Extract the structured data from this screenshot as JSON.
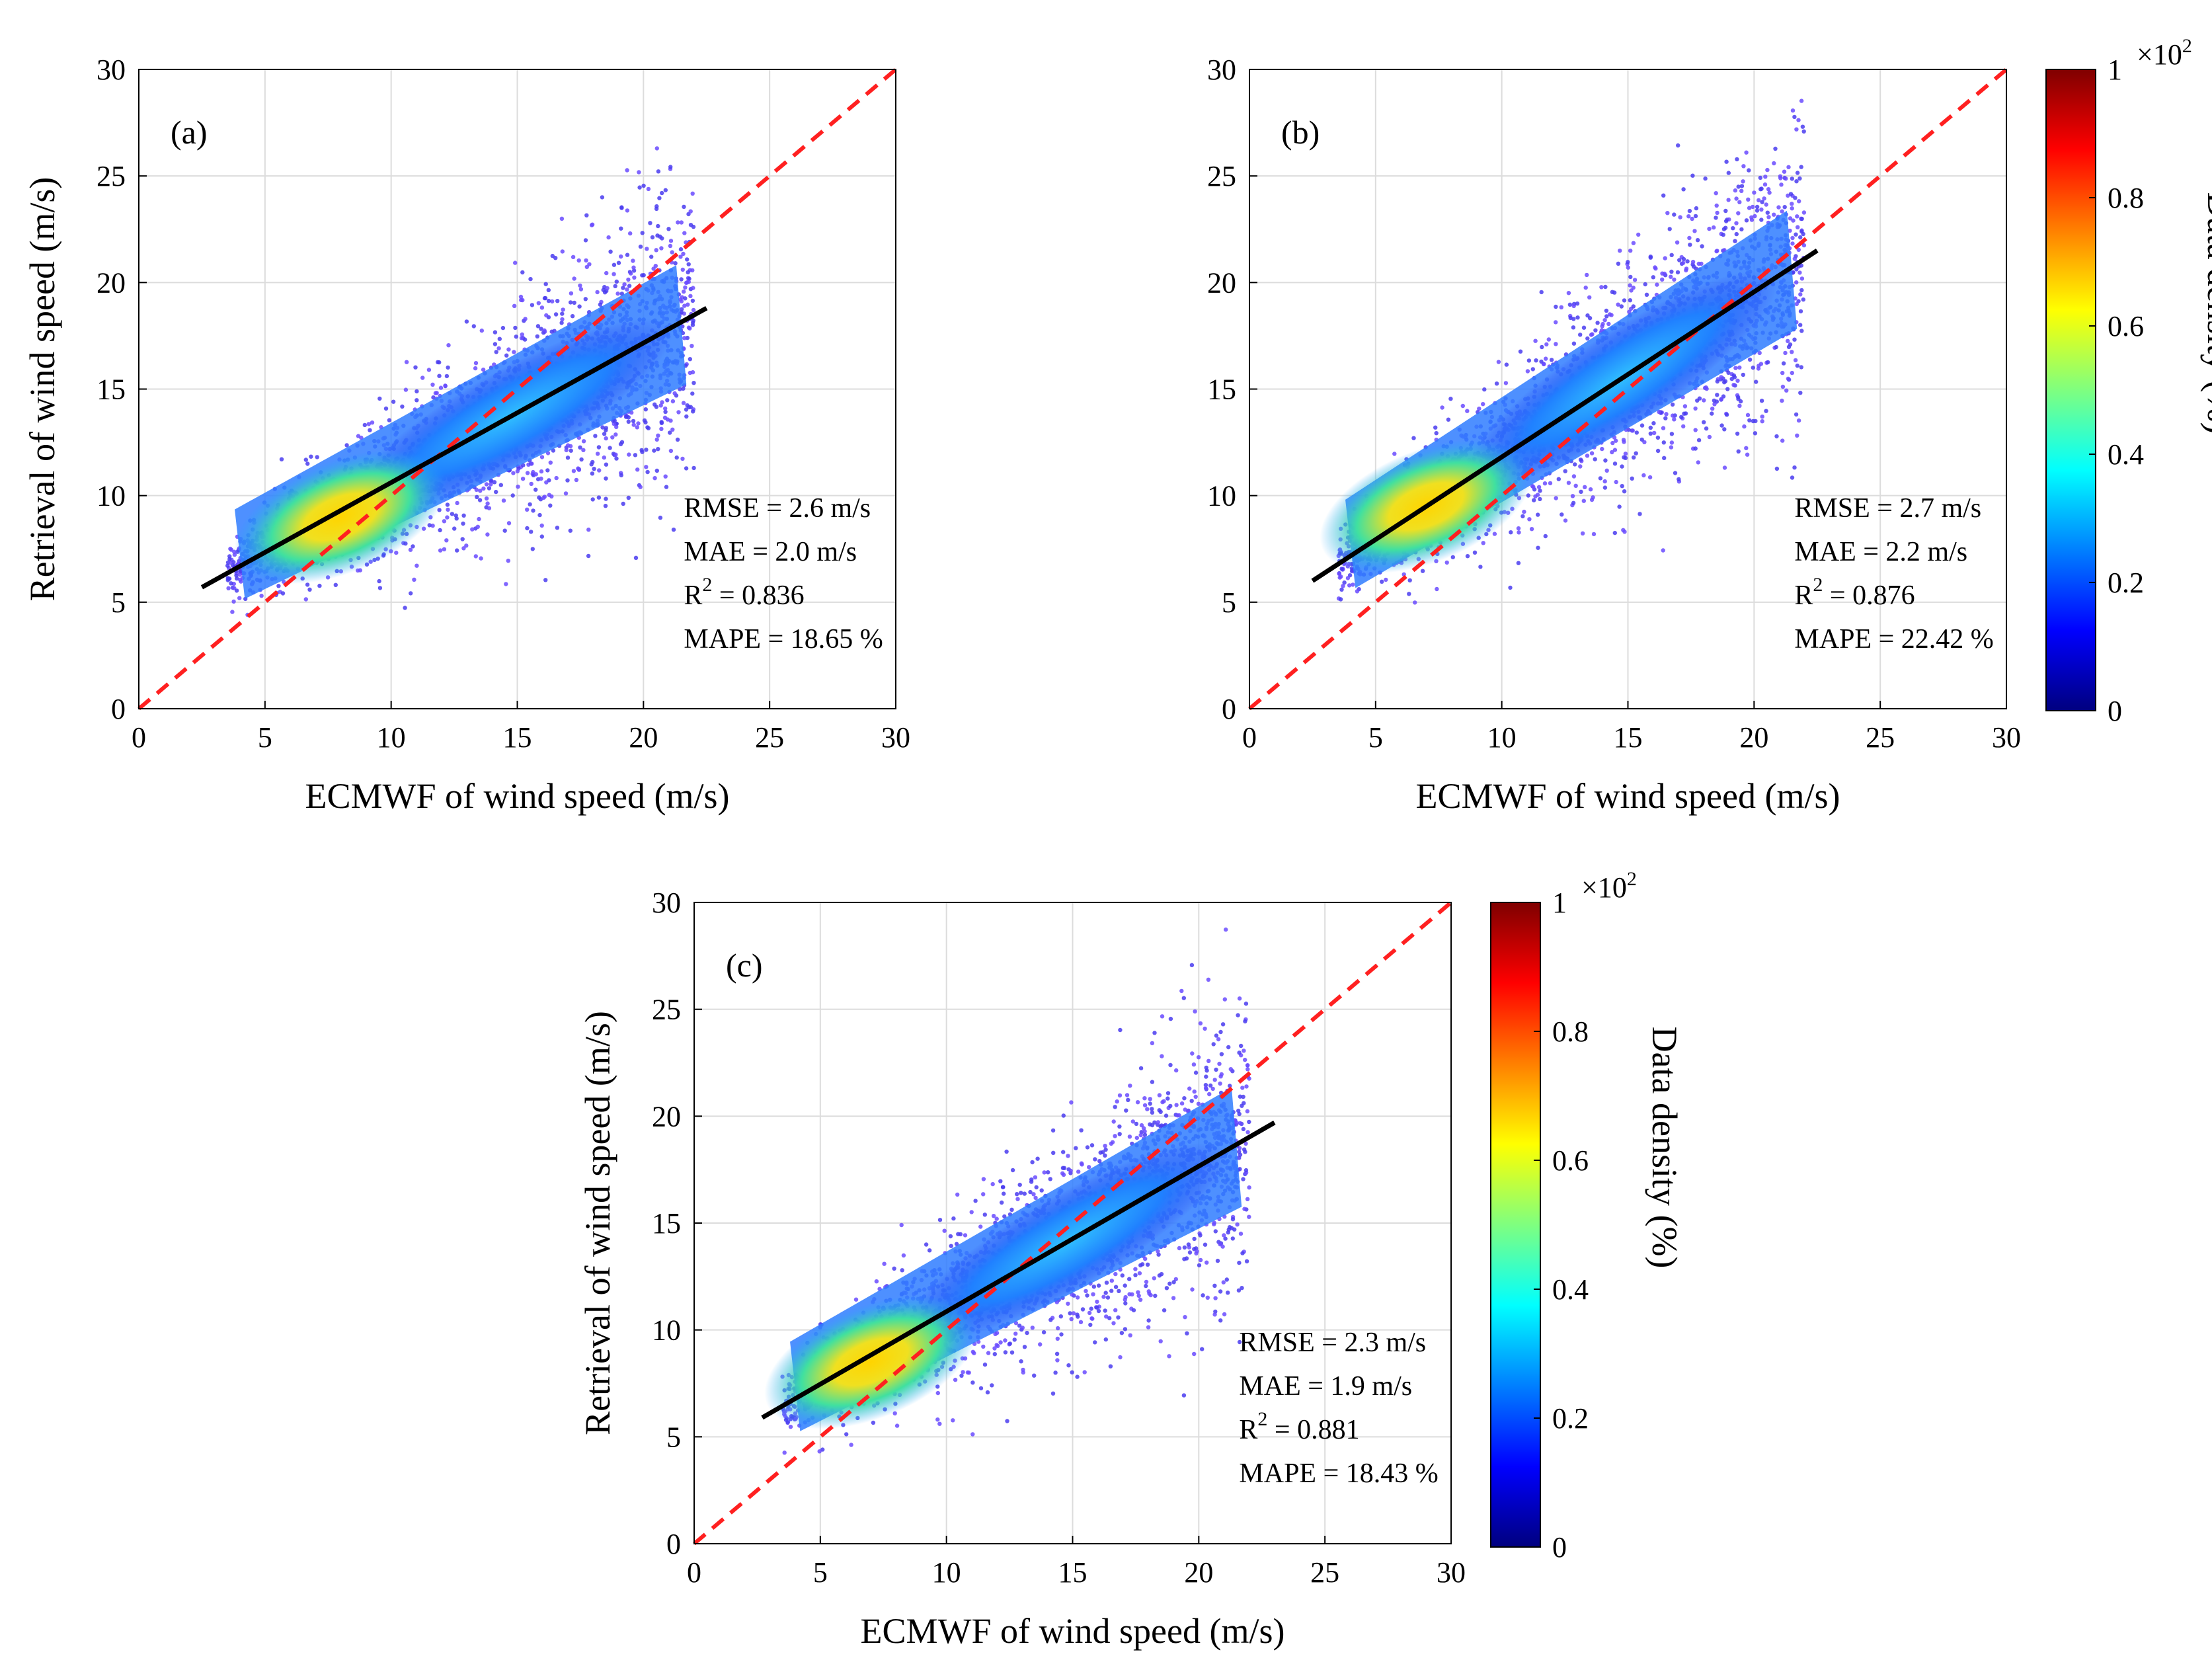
{
  "figure": {
    "description_free": true
  },
  "colors": {
    "identity_line": "#ff2020",
    "fit_line": "#000000",
    "grid": "#dcdcdc",
    "colormap": [
      "#00007f",
      "#0000ff",
      "#007fff",
      "#00ffff",
      "#7fff7f",
      "#ffff00",
      "#ff7f00",
      "#ff0000",
      "#7f0000"
    ]
  },
  "chart_data": [
    {
      "type": "scatter",
      "panel": "(a)",
      "xlabel": "ECMWF of wind speed (m/s)",
      "ylabel": "Retrieval of wind speed (m/s)",
      "xlim": [
        0,
        30
      ],
      "ylim": [
        0,
        30
      ],
      "xticks": [
        "0",
        "5",
        "10",
        "15",
        "20",
        "25",
        "30"
      ],
      "yticks": [
        "0",
        "5",
        "10",
        "15",
        "20",
        "25",
        "30"
      ],
      "grid": true,
      "identity_line": {
        "x": [
          0,
          30
        ],
        "y": [
          0,
          30
        ],
        "style": "dashed"
      },
      "fit_line": {
        "x": [
          2.5,
          22.5
        ],
        "y": [
          5.7,
          18.8
        ]
      },
      "density_core": {
        "x_range": [
          3.5,
          22
        ],
        "center": [
          8,
          9
        ]
      },
      "stats": [
        "RMSE = 2.6 m/s",
        "MAE = 2.0 m/s",
        "R",
        "2",
        " = 0.836",
        "MAPE = 18.65 %"
      ],
      "stats_values": {
        "RMSE": 2.6,
        "MAE": 2.0,
        "R2": 0.836,
        "MAPE": 18.65
      }
    },
    {
      "type": "scatter",
      "panel": "(b)",
      "xlabel": "ECMWF of wind speed (m/s)",
      "ylabel": "",
      "xlim": [
        0,
        30
      ],
      "ylim": [
        0,
        30
      ],
      "xticks": [
        "0",
        "5",
        "10",
        "15",
        "20",
        "25",
        "30"
      ],
      "yticks": [
        "0",
        "5",
        "10",
        "15",
        "20",
        "25",
        "30"
      ],
      "grid": true,
      "identity_line": {
        "x": [
          0,
          30
        ],
        "y": [
          0,
          30
        ],
        "style": "dashed"
      },
      "fit_line": {
        "x": [
          2.5,
          22.5
        ],
        "y": [
          6.0,
          21.5
        ]
      },
      "density_core": {
        "x_range": [
          3.5,
          22
        ],
        "center": [
          7,
          9.5
        ]
      },
      "stats": [
        "RMSE = 2.7 m/s",
        "MAE = 2.2 m/s",
        "R",
        "2",
        " = 0.876",
        "MAPE = 22.42 %"
      ],
      "stats_values": {
        "RMSE": 2.7,
        "MAE": 2.2,
        "R2": 0.876,
        "MAPE": 22.42
      }
    },
    {
      "type": "scatter",
      "panel": "(c)",
      "xlabel": "ECMWF of wind speed (m/s)",
      "ylabel": "Retrieval of wind speed (m/s)",
      "xlim": [
        0,
        30
      ],
      "ylim": [
        0,
        30
      ],
      "xticks": [
        "0",
        "5",
        "10",
        "15",
        "20",
        "25",
        "30"
      ],
      "yticks": [
        "0",
        "5",
        "10",
        "15",
        "20",
        "25",
        "30"
      ],
      "grid": true,
      "identity_line": {
        "x": [
          0,
          30
        ],
        "y": [
          0,
          30
        ],
        "style": "dashed"
      },
      "fit_line": {
        "x": [
          2.7,
          23.0
        ],
        "y": [
          5.9,
          19.7
        ]
      },
      "density_core": {
        "x_range": [
          3.5,
          22
        ],
        "center": [
          7,
          8.5
        ]
      },
      "stats": [
        "RMSE = 2.3 m/s",
        "MAE = 1.9 m/s",
        "R",
        "2",
        " = 0.881",
        "MAPE = 18.43 %"
      ],
      "stats_values": {
        "RMSE": 2.3,
        "MAE": 1.9,
        "R2": 0.881,
        "MAPE": 18.43
      }
    }
  ],
  "colorbars": [
    {
      "label": "Data density (%)",
      "ticks": [
        "0",
        "0.2",
        "0.4",
        "0.6",
        "0.8",
        "1"
      ],
      "tick_values": [
        0,
        0.2,
        0.4,
        0.6,
        0.8,
        1
      ],
      "exponent_base": "×10",
      "exponent": "2"
    },
    {
      "label": "Data density (%)",
      "ticks": [
        "0",
        "0.2",
        "0.4",
        "0.6",
        "0.8",
        "1"
      ],
      "tick_values": [
        0,
        0.2,
        0.4,
        0.6,
        0.8,
        1
      ],
      "exponent_base": "×10",
      "exponent": "2"
    }
  ]
}
